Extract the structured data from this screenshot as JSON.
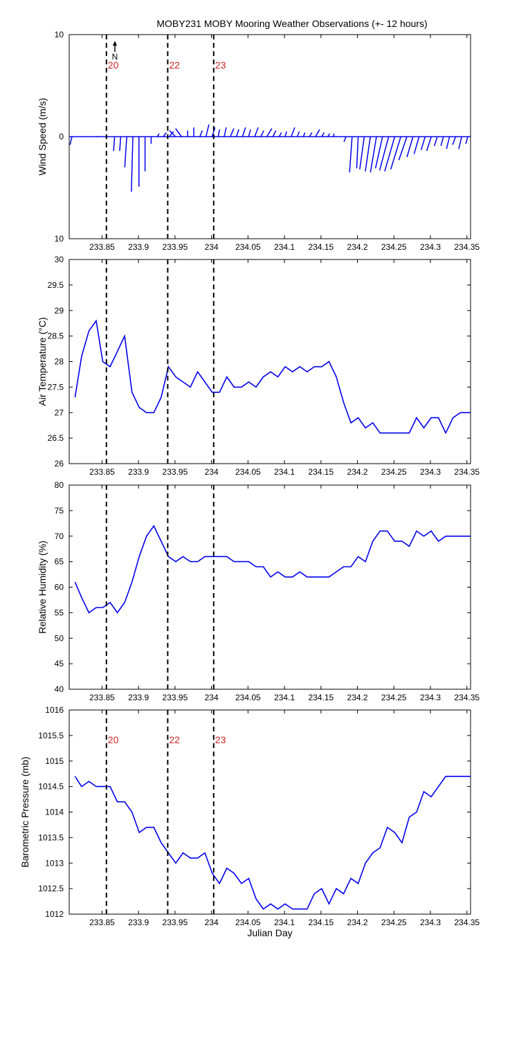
{
  "figure_title": "MOBY231 MOBY Mooring Weather Observations (+- 12 hours)",
  "colors": {
    "series": "#0000ee",
    "marker_label": "#cc2222",
    "axes": "#000000"
  },
  "north_label": "N",
  "x_tick_labels": [
    "233.85",
    "233.9",
    "233.95",
    "234",
    "234.05",
    "234.1",
    "234.15",
    "234.2",
    "234.25",
    "234.3",
    "234.35"
  ],
  "chart_data": [
    {
      "type": "line",
      "title": "MOBY231 MOBY Mooring Weather Observations (+- 12 hours)",
      "xlabel": "",
      "ylabel": "Wind Speed (m/s)",
      "xlim": [
        233.805,
        234.355
      ],
      "ylim": [
        -10,
        10
      ],
      "y_tick_values": [
        -10,
        0,
        10
      ],
      "y_tick_labels": [
        "10",
        "0",
        "10"
      ],
      "x_ticks": [
        233.85,
        233.9,
        233.95,
        234.0,
        234.05,
        234.1,
        234.15,
        234.2,
        234.25,
        234.3,
        234.35
      ],
      "grid": false,
      "vlines": [
        {
          "x": 233.856,
          "label": "20"
        },
        {
          "x": 233.94,
          "label": "22"
        },
        {
          "x": 234.003,
          "label": "23"
        }
      ],
      "note": "wind stick plot: u = east component, v = north component (m/s)",
      "u": [
        -0.4,
        0,
        0,
        0,
        0.3,
        0,
        0,
        -0.2,
        -0.2,
        -0.4,
        -0.3,
        0,
        0,
        0,
        0.4,
        0.6,
        0.8,
        -1.2,
        -1.2,
        0,
        0,
        0.5,
        0.6,
        0.6,
        0.3,
        0.4,
        0.7,
        0.5,
        0.6,
        0.4,
        0.7,
        0.6,
        1.0,
        0.6,
        0.5,
        0.3,
        0.7,
        0.4,
        0.3,
        0.5,
        0.8,
        0.5,
        0.4,
        0,
        0,
        -0.4,
        -0.5,
        -0.3,
        -0.9,
        -1.0,
        -1.2,
        -1.4,
        -1.8,
        -2.0,
        -2.0,
        -1.6,
        -1.2,
        -1.0,
        -0.8,
        -0.9,
        -0.6,
        -0.5,
        -0.6,
        -0.6,
        -0.6,
        -0.4
      ],
      "v": [
        -0.8,
        0,
        0,
        0,
        0,
        0,
        0,
        -1.4,
        -1.4,
        -3.0,
        -5.4,
        -4.9,
        -3.4,
        -0.7,
        0.3,
        0.4,
        0.5,
        0.6,
        0.8,
        0.6,
        0.9,
        0.6,
        1.2,
        0.9,
        0.7,
        0.9,
        0.8,
        0.7,
        0.9,
        0.7,
        0.9,
        0.6,
        0.8,
        0.6,
        0.4,
        0.5,
        0.9,
        0.5,
        0.4,
        0.4,
        0.7,
        0.4,
        0.3,
        0.3,
        0,
        -0.5,
        -3.5,
        -3.1,
        -3.2,
        -3.4,
        -3.5,
        -3.1,
        -3.3,
        -3.4,
        -3.2,
        -2.3,
        -2.0,
        -1.7,
        -1.3,
        -1.4,
        -0.9,
        -0.9,
        -1.2,
        -0.8,
        -1.2,
        -0.7
      ]
    },
    {
      "type": "line",
      "xlabel": "",
      "ylabel": "Air Temperature (°C)",
      "xlim": [
        233.805,
        234.355
      ],
      "ylim": [
        26,
        30
      ],
      "y_tick_values": [
        26,
        26.5,
        27,
        27.5,
        28,
        28.5,
        29,
        29.5,
        30
      ],
      "y_tick_labels": [
        "26",
        "26.5",
        "27",
        "27.5",
        "28",
        "28.5",
        "29",
        "29.5",
        "30"
      ],
      "x_ticks": [
        233.85,
        233.9,
        233.95,
        234.0,
        234.05,
        234.1,
        234.15,
        234.2,
        234.25,
        234.3,
        234.35
      ],
      "grid": false,
      "vlines": [
        {
          "x": 233.856,
          "label": ""
        },
        {
          "x": 233.94,
          "label": ""
        },
        {
          "x": 234.003,
          "label": ""
        }
      ],
      "x": [
        233.813,
        233.822,
        233.832,
        233.842,
        233.851,
        233.861,
        233.871,
        233.881,
        233.891,
        233.901,
        233.911,
        233.921,
        233.931,
        233.941,
        233.951,
        233.961,
        233.971,
        233.981,
        233.991,
        234.001,
        234.011,
        234.021,
        234.031,
        234.041,
        234.051,
        234.061,
        234.071,
        234.081,
        234.091,
        234.101,
        234.111,
        234.121,
        234.131,
        234.141,
        234.151,
        234.161,
        234.171,
        234.181,
        234.191,
        234.201,
        234.211,
        234.221,
        234.231,
        234.241,
        234.251,
        234.261,
        234.271,
        234.281,
        234.291,
        234.301,
        234.311,
        234.321,
        234.331,
        234.341,
        234.351,
        234.355
      ],
      "y": [
        27.3,
        28.1,
        28.6,
        28.8,
        28.0,
        27.9,
        28.2,
        28.5,
        27.4,
        27.1,
        27.0,
        27.0,
        27.3,
        27.9,
        27.7,
        27.6,
        27.5,
        27.8,
        27.6,
        27.4,
        27.4,
        27.7,
        27.5,
        27.5,
        27.6,
        27.5,
        27.7,
        27.8,
        27.7,
        27.9,
        27.8,
        27.9,
        27.8,
        27.9,
        27.9,
        28.0,
        27.7,
        27.2,
        26.8,
        26.9,
        26.7,
        26.8,
        26.6,
        26.6,
        26.6,
        26.6,
        26.6,
        26.9,
        26.7,
        26.9,
        26.9,
        26.6,
        26.9,
        27.0,
        27.0,
        27.0
      ]
    },
    {
      "type": "line",
      "xlabel": "",
      "ylabel": "Relative Humidity (%)",
      "xlim": [
        233.805,
        234.355
      ],
      "ylim": [
        40,
        80
      ],
      "y_tick_values": [
        40,
        45,
        50,
        55,
        60,
        65,
        70,
        75,
        80
      ],
      "y_tick_labels": [
        "40",
        "45",
        "50",
        "55",
        "60",
        "65",
        "70",
        "75",
        "80"
      ],
      "x_ticks": [
        233.85,
        233.9,
        233.95,
        234.0,
        234.05,
        234.1,
        234.15,
        234.2,
        234.25,
        234.3,
        234.35
      ],
      "grid": false,
      "vlines": [
        {
          "x": 233.856,
          "label": ""
        },
        {
          "x": 233.94,
          "label": ""
        },
        {
          "x": 234.003,
          "label": ""
        }
      ],
      "x": [
        233.813,
        233.822,
        233.832,
        233.842,
        233.851,
        233.861,
        233.871,
        233.881,
        233.891,
        233.901,
        233.911,
        233.921,
        233.931,
        233.941,
        233.951,
        233.961,
        233.971,
        233.981,
        233.991,
        234.001,
        234.011,
        234.021,
        234.031,
        234.041,
        234.051,
        234.061,
        234.071,
        234.081,
        234.091,
        234.101,
        234.111,
        234.121,
        234.131,
        234.141,
        234.151,
        234.161,
        234.171,
        234.181,
        234.191,
        234.201,
        234.211,
        234.221,
        234.231,
        234.241,
        234.251,
        234.261,
        234.271,
        234.281,
        234.291,
        234.301,
        234.311,
        234.321,
        234.331,
        234.341,
        234.351,
        234.355
      ],
      "y": [
        61,
        58,
        55,
        56,
        56,
        57,
        55,
        57,
        61,
        66,
        70,
        72,
        69,
        66,
        65,
        66,
        65,
        65,
        66,
        66,
        66,
        66,
        65,
        65,
        65,
        64,
        64,
        62,
        63,
        62,
        62,
        63,
        62,
        62,
        62,
        62,
        63,
        64,
        64,
        66,
        65,
        69,
        71,
        71,
        69,
        69,
        68,
        71,
        70,
        71,
        69,
        70,
        70,
        70,
        70,
        70
      ]
    },
    {
      "type": "line",
      "xlabel": "Julian Day",
      "ylabel": "Barometric Pressure (mb)",
      "xlim": [
        233.805,
        234.355
      ],
      "ylim": [
        1012,
        1016
      ],
      "y_tick_values": [
        1012,
        1012.5,
        1013,
        1013.5,
        1014,
        1014.5,
        1015,
        1015.5,
        1016
      ],
      "y_tick_labels": [
        "1012",
        "1012.5",
        "1013",
        "1013.5",
        "1014",
        "1014.5",
        "1015",
        "1015.5",
        "1016"
      ],
      "x_ticks": [
        233.85,
        233.9,
        233.95,
        234.0,
        234.05,
        234.1,
        234.15,
        234.2,
        234.25,
        234.3,
        234.35
      ],
      "grid": false,
      "vlines": [
        {
          "x": 233.856,
          "label": "20"
        },
        {
          "x": 233.94,
          "label": "22"
        },
        {
          "x": 234.003,
          "label": "23"
        }
      ],
      "x": [
        233.813,
        233.822,
        233.832,
        233.842,
        233.851,
        233.861,
        233.871,
        233.881,
        233.891,
        233.901,
        233.911,
        233.921,
        233.931,
        233.941,
        233.951,
        233.961,
        233.971,
        233.981,
        233.991,
        234.001,
        234.011,
        234.021,
        234.031,
        234.041,
        234.051,
        234.061,
        234.071,
        234.081,
        234.091,
        234.101,
        234.111,
        234.121,
        234.131,
        234.141,
        234.151,
        234.161,
        234.171,
        234.181,
        234.191,
        234.201,
        234.211,
        234.221,
        234.231,
        234.241,
        234.251,
        234.261,
        234.271,
        234.281,
        234.291,
        234.301,
        234.311,
        234.321,
        234.331,
        234.341,
        234.351,
        234.355
      ],
      "y": [
        1014.7,
        1014.5,
        1014.6,
        1014.5,
        1014.5,
        1014.5,
        1014.2,
        1014.2,
        1014.0,
        1013.6,
        1013.7,
        1013.7,
        1013.4,
        1013.2,
        1013.0,
        1013.2,
        1013.1,
        1013.1,
        1013.2,
        1012.8,
        1012.6,
        1012.9,
        1012.8,
        1012.6,
        1012.7,
        1012.3,
        1012.1,
        1012.2,
        1012.1,
        1012.2,
        1012.1,
        1012.1,
        1012.1,
        1012.4,
        1012.5,
        1012.2,
        1012.5,
        1012.4,
        1012.7,
        1012.6,
        1013.0,
        1013.2,
        1013.3,
        1013.7,
        1013.6,
        1013.4,
        1013.9,
        1014.0,
        1014.4,
        1014.3,
        1014.5,
        1014.7,
        1014.7,
        1014.7,
        1014.7,
        1014.7
      ]
    }
  ]
}
